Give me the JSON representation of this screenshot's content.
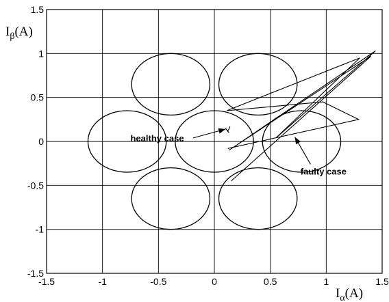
{
  "chart_data": {
    "type": "line",
    "title": "",
    "xlabel": {
      "base": "I",
      "sub": "α",
      "unit": "(A)"
    },
    "ylabel": {
      "base": "I",
      "sub": "β",
      "unit": "(A)"
    },
    "xlim": [
      -1.5,
      1.5
    ],
    "ylim": [
      -1.5,
      1.5
    ],
    "xticks": [
      -1.5,
      -1,
      -0.5,
      0,
      0.5,
      1,
      1.5
    ],
    "yticks": [
      -1.5,
      -1,
      -0.5,
      0,
      0.5,
      1,
      1.5
    ],
    "xtick_labels": [
      "-1.5",
      "-1",
      "-0.5",
      "0",
      "0.5",
      "1",
      "1.5"
    ],
    "ytick_labels": [
      "-1.5",
      "-1",
      "-0.5",
      "0",
      "0.5",
      "1",
      "1.5"
    ],
    "grid": true,
    "legend": "none",
    "line_color": "#000000",
    "series": [
      {
        "kind": "circles",
        "radius": 0.35,
        "centers": [
          [
            -0.39,
            0.65
          ],
          [
            0.39,
            0.65
          ],
          [
            -0.78,
            0.0
          ],
          [
            0.0,
            0.0
          ],
          [
            0.78,
            0.0
          ],
          [
            -0.39,
            -0.65
          ],
          [
            0.39,
            -0.65
          ]
        ]
      },
      {
        "kind": "trajectory",
        "x": [
          0.15,
          1.4,
          0.13,
          1.44,
          0.55,
          1.3,
          0.11,
          0.97,
          1.29,
          0.12
        ],
        "y": [
          -0.45,
          0.97,
          -0.1,
          1.03,
          0.04,
          0.95,
          0.35,
          0.45,
          0.25,
          -0.08
        ]
      },
      {
        "kind": "cluster",
        "x": [
          0.14,
          0.13,
          0.12,
          0.1,
          0.13,
          0.11
        ],
        "y": [
          0.17,
          0.14,
          0.12,
          0.15,
          0.1,
          0.13
        ]
      }
    ],
    "annotations": [
      {
        "text": "healthy case",
        "text_at": [
          -0.75,
          0.04
        ],
        "arrow_tail": [
          -0.19,
          0.04
        ],
        "arrow_head": [
          0.1,
          0.14
        ]
      },
      {
        "text": "faulty case",
        "text_at": [
          0.77,
          -0.34
        ],
        "arrow_tail": [
          0.86,
          -0.26
        ],
        "arrow_head": [
          0.72,
          0.05
        ]
      }
    ]
  }
}
